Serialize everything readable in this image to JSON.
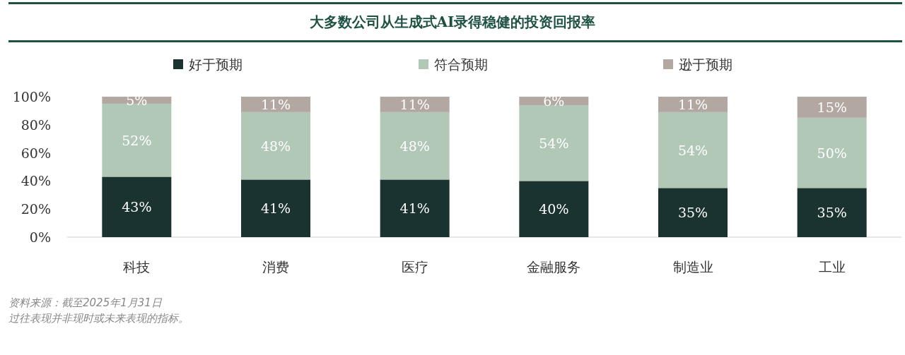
{
  "chart_data": {
    "type": "bar",
    "title": "大多数公司从生成式AI录得稳健的投资回报率",
    "categories": [
      "科技",
      "消费",
      "医疗",
      "金融服务",
      "制造业",
      "工业"
    ],
    "series": [
      {
        "name": "好于预期",
        "color": "#1b3330",
        "values": [
          43,
          41,
          41,
          40,
          35,
          35
        ],
        "value_labels": [
          "43%",
          "41%",
          "41%",
          "40%",
          "35%",
          "35%"
        ]
      },
      {
        "name": "符合预期",
        "color": "#b1c8b7",
        "values": [
          52,
          48,
          48,
          54,
          54,
          50
        ],
        "value_labels": [
          "52%",
          "48%",
          "48%",
          "54%",
          "54%",
          "50%"
        ]
      },
      {
        "name": "逊于预期",
        "color": "#b3a7a1",
        "values": [
          5,
          11,
          11,
          6,
          11,
          15
        ],
        "value_labels": [
          "5%",
          "11%",
          "11%",
          "6%",
          "11%",
          "15%"
        ]
      }
    ],
    "stacked": true,
    "legend": "top",
    "ylim": [
      0,
      100
    ],
    "yticks": [
      {
        "value": 0,
        "label": "0%"
      },
      {
        "value": 20,
        "label": "20%"
      },
      {
        "value": 40,
        "label": "40%"
      },
      {
        "value": 60,
        "label": "60%"
      },
      {
        "value": 80,
        "label": "80%"
      },
      {
        "value": 100,
        "label": "100%"
      }
    ],
    "annotations": [
      "资料来源：截至2025年1月31日",
      "过往表现并非现时或未来表现的指标。"
    ]
  }
}
